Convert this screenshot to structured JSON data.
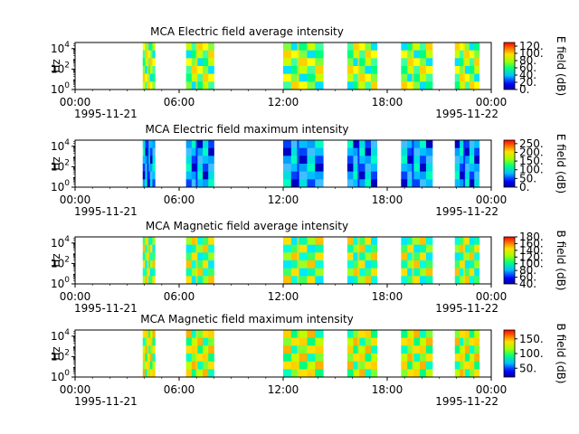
{
  "chart_data": [
    {
      "type": "heatmap",
      "title": "MCA  Electric field average intensity",
      "ylabel": "Hz",
      "y_scale": "log",
      "y_ticks": [
        {
          "base": "10",
          "exp": "0"
        },
        {
          "base": "10",
          "exp": "2"
        },
        {
          "base": "10",
          "exp": "4"
        }
      ],
      "x_ticks": [
        "00:00",
        "06:00",
        "12:00",
        "18:00",
        "00:00"
      ],
      "x_dates": [
        "1995-11-21",
        "1995-11-22"
      ],
      "colorbar": {
        "label": "E field (dB)",
        "ticks": [
          "0.",
          "20.",
          "40.",
          "60.",
          "80.",
          "100.",
          "120."
        ],
        "min": 0,
        "max": 130
      },
      "data_intervals_hours": [
        [
          3.9,
          4.6
        ],
        [
          6.4,
          8.0
        ],
        [
          12.0,
          14.3
        ],
        [
          15.7,
          17.4
        ],
        [
          18.8,
          20.6
        ],
        [
          21.9,
          23.3
        ]
      ],
      "dominant_level": "yellow-green"
    },
    {
      "type": "heatmap",
      "title": "MCA  Electric field maximum intensity",
      "ylabel": "Hz",
      "y_scale": "log",
      "y_ticks": [
        {
          "base": "10",
          "exp": "0"
        },
        {
          "base": "10",
          "exp": "2"
        },
        {
          "base": "10",
          "exp": "4"
        }
      ],
      "x_ticks": [
        "00:00",
        "06:00",
        "12:00",
        "18:00",
        "00:00"
      ],
      "x_dates": [
        "1995-11-21",
        "1995-11-22"
      ],
      "colorbar": {
        "label": "E field (dB)",
        "ticks": [
          "0.",
          "50.",
          "100.",
          "150.",
          "200.",
          "250."
        ],
        "min": 0,
        "max": 270
      },
      "data_intervals_hours": [
        [
          3.9,
          4.6
        ],
        [
          6.4,
          8.0
        ],
        [
          12.0,
          14.3
        ],
        [
          15.7,
          17.4
        ],
        [
          18.8,
          20.6
        ],
        [
          21.9,
          23.3
        ]
      ],
      "dominant_level": "cyan-blue"
    },
    {
      "type": "heatmap",
      "title": "MCA  Magnetic field average intensity",
      "ylabel": "Hz",
      "y_scale": "log",
      "y_ticks": [
        {
          "base": "10",
          "exp": "0"
        },
        {
          "base": "10",
          "exp": "2"
        },
        {
          "base": "10",
          "exp": "4"
        }
      ],
      "x_ticks": [
        "00:00",
        "06:00",
        "12:00",
        "18:00",
        "00:00"
      ],
      "x_dates": [
        "1995-11-21",
        "1995-11-22"
      ],
      "colorbar": {
        "label": "B field (dB)",
        "ticks": [
          "40.",
          "60.",
          "80.",
          "100.",
          "120.",
          "140.",
          "160.",
          "180."
        ],
        "min": 40,
        "max": 180
      },
      "data_intervals_hours": [
        [
          3.9,
          4.6
        ],
        [
          6.4,
          8.0
        ],
        [
          12.0,
          14.3
        ],
        [
          15.7,
          17.4
        ],
        [
          18.8,
          20.6
        ],
        [
          21.9,
          23.3
        ]
      ],
      "dominant_level": "cyan-green-yellow"
    },
    {
      "type": "heatmap",
      "title": "MCA  Magnetic field maximum intensity",
      "ylabel": "Hz",
      "y_scale": "log",
      "y_ticks": [
        {
          "base": "10",
          "exp": "0"
        },
        {
          "base": "10",
          "exp": "2"
        },
        {
          "base": "10",
          "exp": "4"
        }
      ],
      "x_ticks": [
        "00:00",
        "06:00",
        "12:00",
        "18:00",
        "00:00"
      ],
      "x_dates": [
        "1995-11-21",
        "1995-11-22"
      ],
      "colorbar": {
        "label": "B field (dB)",
        "ticks": [
          "50.",
          "100.",
          "150."
        ],
        "min": 20,
        "max": 180
      },
      "data_intervals_hours": [
        [
          3.9,
          4.6
        ],
        [
          6.4,
          8.0
        ],
        [
          12.0,
          14.3
        ],
        [
          15.7,
          17.4
        ],
        [
          18.8,
          20.6
        ],
        [
          21.9,
          23.3
        ]
      ],
      "dominant_level": "green-yellow"
    }
  ]
}
